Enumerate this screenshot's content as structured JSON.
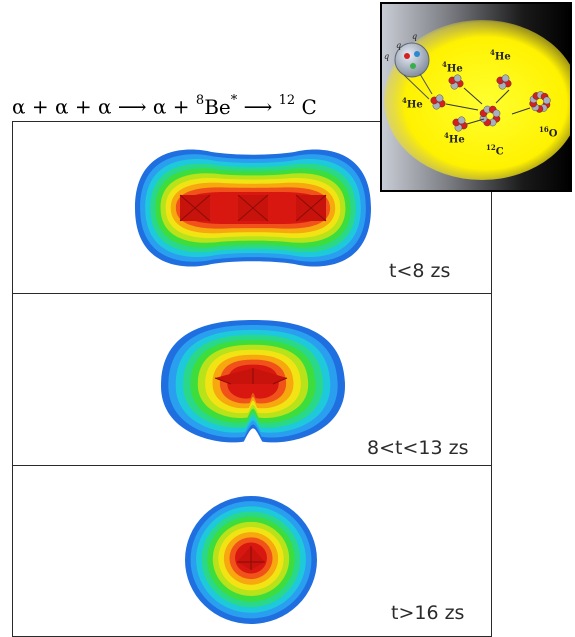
{
  "equation": {
    "alpha": "α",
    "plus": "+",
    "arrow": "⟶",
    "be_mass": "8",
    "be_symbol": "Be",
    "be_star": "*",
    "c_mass": "12",
    "c_symbol": "C"
  },
  "panels": [
    {
      "time_label": "t<8 zs"
    },
    {
      "time_label": "8<t<13 zs"
    },
    {
      "time_label": "t>16 zs"
    }
  ],
  "inset": {
    "labels": [
      {
        "mass": "4",
        "symbol": "He"
      },
      {
        "mass": "4",
        "symbol": "He"
      },
      {
        "mass": "4",
        "symbol": "He"
      },
      {
        "mass": "4",
        "symbol": "He"
      },
      {
        "mass": "12",
        "symbol": "C"
      },
      {
        "mass": "16",
        "symbol": "O"
      }
    ],
    "quark_label": "q"
  },
  "colors": {
    "contour_levels": [
      "#1f6fe0",
      "#2a9ff0",
      "#1ec9dc",
      "#2ad88a",
      "#3cdd3c",
      "#b8e21a",
      "#f2e414",
      "#f6a80e",
      "#f0521a",
      "#d81810"
    ],
    "inset_glow": "#fff200",
    "nucleon_red": "#d42020",
    "nucleon_gray": "#a8b0c0"
  }
}
